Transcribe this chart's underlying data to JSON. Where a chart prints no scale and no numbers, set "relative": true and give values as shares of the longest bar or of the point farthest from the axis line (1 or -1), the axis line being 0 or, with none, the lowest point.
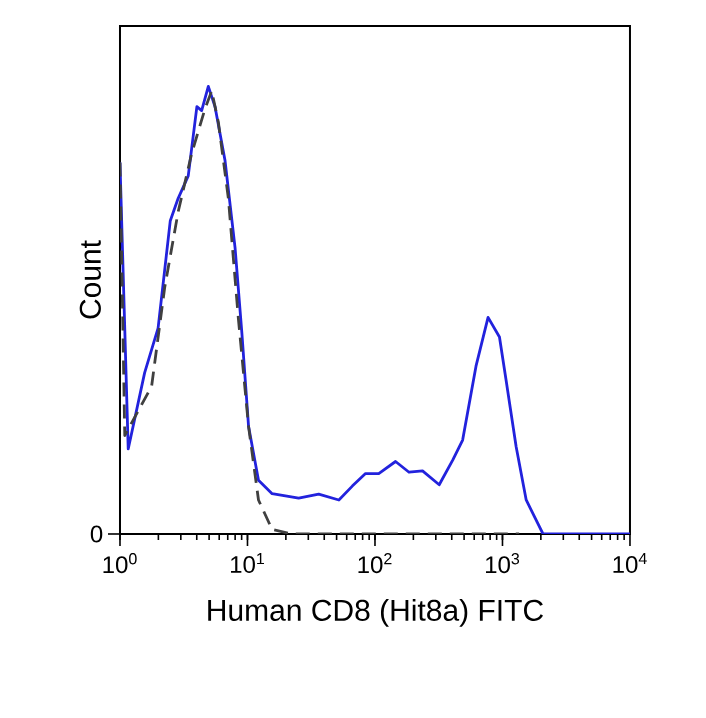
{
  "chart_data": {
    "type": "line",
    "relative": true,
    "xlabel": "Human CD8 (Hit8a) FITC",
    "ylabel": "Count",
    "log": "x",
    "xlim": [
      1,
      10000
    ],
    "xticks": [
      {
        "value": 1,
        "label": "10$^{0}$"
      },
      {
        "value": 10,
        "label": "10$^{1}$"
      },
      {
        "value": 100,
        "label": "10$^{2}$"
      },
      {
        "value": 1000,
        "label": "10$^{3}$"
      },
      {
        "value": 10000,
        "label": "10$^{4}$"
      }
    ],
    "annotations": [
      "0"
    ],
    "grid": false,
    "marker": "none",
    "series": [
      {
        "color": "#2222dd",
        "line_style": "solid",
        "x": [
          1,
          1.16,
          1.56,
          1.99,
          2.48,
          2.86,
          3.43,
          4.01,
          4.37,
          4.93,
          5.56,
          6.66,
          7.99,
          9.03,
          10.2,
          12.2,
          15.6,
          25.2,
          36.2,
          52.1,
          66.4,
          84.3,
          107,
          145,
          185,
          236,
          319,
          407,
          487,
          620,
          771,
          947,
          1067,
          1280,
          1535,
          2080,
          2810,
          10000
        ],
        "values": [
          0.83,
          0.19,
          0.36,
          0.46,
          0.7,
          0.75,
          0.8,
          0.955,
          0.946,
          1,
          0.955,
          0.835,
          0.64,
          0.45,
          0.24,
          0.12,
          0.09,
          0.08,
          0.089,
          0.076,
          0.107,
          0.135,
          0.135,
          0.162,
          0.138,
          0.141,
          0.11,
          0.165,
          0.21,
          0.375,
          0.484,
          0.44,
          0.344,
          0.195,
          0.076,
          0,
          0,
          0
        ]
      },
      {
        "color": "#404040",
        "line_style": "dashed",
        "x": [
          1,
          1.09,
          1.77,
          2.24,
          2.86,
          3.65,
          4.64,
          5.24,
          5.91,
          7.08,
          8.49,
          10.2,
          12.2,
          15.6,
          22.4,
          1350
        ],
        "values": [
          0.83,
          0.22,
          0.33,
          0.55,
          0.72,
          0.85,
          0.95,
          0.99,
          0.92,
          0.75,
          0.48,
          0.24,
          0.076,
          0.01,
          0,
          0
        ]
      }
    ]
  }
}
